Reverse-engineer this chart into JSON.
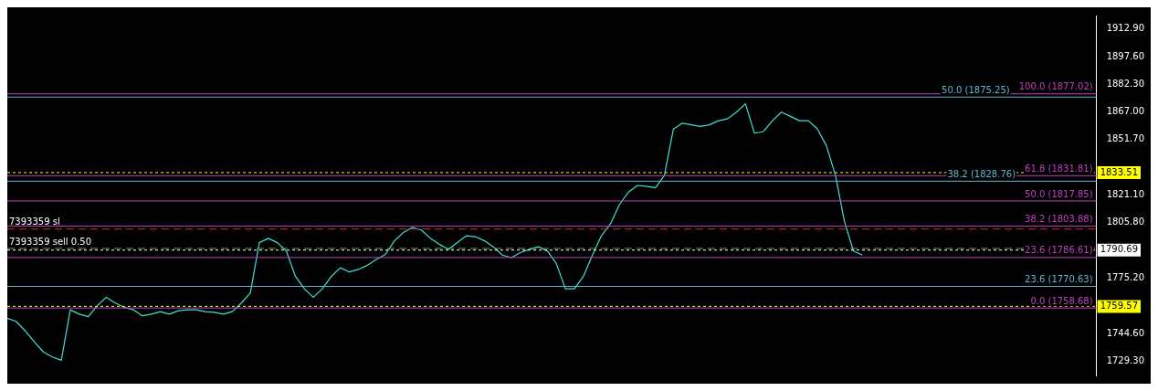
{
  "chart_data": {
    "type": "line",
    "categories": [
      null,
      null,
      null,
      null,
      null,
      null,
      null,
      null,
      null,
      null,
      null,
      null,
      null,
      null,
      null,
      null,
      null,
      null,
      null,
      null,
      null,
      null,
      null,
      null,
      null,
      null,
      null,
      null,
      null,
      null,
      null,
      null,
      null,
      null,
      null,
      null,
      null,
      null,
      null,
      null,
      null,
      null,
      null,
      null,
      null,
      null,
      null,
      null,
      null,
      null,
      null,
      null,
      null,
      null,
      null,
      null,
      null,
      null,
      null,
      null,
      null,
      null,
      null,
      null,
      null,
      null,
      null,
      null,
      null,
      null,
      null,
      null,
      null,
      null,
      null,
      null,
      null,
      null,
      null,
      null,
      null,
      null,
      null,
      null,
      null,
      null,
      null,
      null,
      null,
      null,
      null,
      null,
      null,
      null,
      null,
      null,
      null,
      null,
      null,
      null,
      null,
      null,
      null,
      null,
      null,
      null,
      null,
      null,
      null,
      null,
      null,
      null,
      null,
      null,
      null,
      null,
      null,
      null,
      null,
      null,
      null,
      null
    ],
    "series": [
      {
        "color": "#40e0d0",
        "values": [
          1753.0,
          1751.2,
          1746.0,
          1740.0,
          1734.4,
          1731.6,
          1729.8,
          1757.7,
          1755.3,
          1753.9,
          1760.0,
          1764.6,
          1761.4,
          1759.0,
          1757.7,
          1754.4,
          1755.3,
          1756.7,
          1755.3,
          1757.2,
          1757.7,
          1757.7,
          1756.7,
          1756.3,
          1755.3,
          1756.7,
          1761.4,
          1767.0,
          1794.8,
          1797.2,
          1794.8,
          1790.2,
          1776.2,
          1769.3,
          1764.6,
          1769.3,
          1776.2,
          1780.9,
          1778.6,
          1780.0,
          1782.3,
          1785.5,
          1788.3,
          1795.8,
          1800.4,
          1803.2,
          1801.8,
          1797.2,
          1793.9,
          1791.1,
          1794.8,
          1798.6,
          1798.1,
          1795.8,
          1792.5,
          1787.9,
          1786.5,
          1789.3,
          1791.1,
          1792.5,
          1790.2,
          1783.2,
          1769.3,
          1769.3,
          1776.2,
          1787.9,
          1798.6,
          1805.1,
          1815.8,
          1822.7,
          1826.4,
          1826.0,
          1825.1,
          1832.0,
          1857.6,
          1860.8,
          1859.9,
          1859.0,
          1859.9,
          1862.2,
          1863.2,
          1866.9,
          1871.5,
          1855.3,
          1856.2,
          1862.2,
          1866.9,
          1864.6,
          1862.2,
          1862.2,
          1857.6,
          1848.3,
          1832.0,
          1806.5,
          1790.2,
          1787.9,
          null,
          null,
          null,
          null,
          null,
          null,
          null,
          null,
          null,
          null,
          null,
          null,
          null,
          null,
          null,
          null,
          null,
          null,
          null,
          null,
          null,
          null,
          null,
          null,
          null,
          null
        ]
      }
    ],
    "ylim": [
      1721.4,
      1920.3
    ],
    "yticks": [
      {
        "value": 1912.9,
        "label": "1912.90"
      },
      {
        "value": 1897.6,
        "label": "1897.60"
      },
      {
        "value": 1882.3,
        "label": "1882.30"
      },
      {
        "value": 1867.0,
        "label": "1867.00"
      },
      {
        "value": 1851.7,
        "label": "1851.70"
      },
      {
        "value": 1821.1,
        "label": "1821.10"
      },
      {
        "value": 1805.8,
        "label": "1805.80"
      },
      {
        "value": 1775.2,
        "label": "1775.20"
      },
      {
        "value": 1744.6,
        "label": "1744.60"
      },
      {
        "value": 1729.3,
        "label": "1729.30"
      }
    ],
    "tick_labels": "y",
    "grid": false,
    "legend": false,
    "marker": "none",
    "line_style": "solid",
    "ref_lines": [
      {
        "axis": "y",
        "value": 1877.02,
        "label": "100.0 (1877.02)",
        "color": "#c040c0",
        "line_style": "solid"
      },
      {
        "axis": "y",
        "value": 1875.25,
        "label": "50.0 (1875.25)",
        "color": "#5fb8d0",
        "line_style": "solid"
      },
      {
        "axis": "y",
        "value": 1831.81,
        "label": "61.8 (1831.81)",
        "color": "#c040c0",
        "line_style": "solid"
      },
      {
        "axis": "y",
        "value": 1828.76,
        "label": "38.2 (1828.76)",
        "color": "#5fb8d0",
        "line_style": "solid"
      },
      {
        "axis": "y",
        "value": 1817.85,
        "label": "50.0 (1817.85)",
        "color": "#c040c0",
        "line_style": "solid"
      },
      {
        "axis": "y",
        "value": 1803.88,
        "label": "38.2 (1803.88)",
        "color": "#c040c0",
        "line_style": "solid"
      },
      {
        "axis": "y",
        "value": 1786.61,
        "label": "23.6 (1786.61)",
        "color": "#c040c0",
        "line_style": "solid"
      },
      {
        "axis": "y",
        "value": 1770.63,
        "label": "23.6 (1770.63)",
        "color": "#5fb8d0",
        "line_style": "solid"
      },
      {
        "axis": "y",
        "value": 1758.68,
        "label": "0.0 (1758.68)",
        "color": "#c040c0",
        "line_style": "solid"
      },
      {
        "axis": "y",
        "value": 1802.3,
        "label": "7393359 sl",
        "color": "#d03030",
        "line_style": "dashed"
      },
      {
        "axis": "y",
        "value": 1791.6,
        "label": "7393359 sell 0.50",
        "color": "#60a060",
        "line_style": "dashed"
      },
      {
        "axis": "y",
        "value": 1833.51,
        "label": "1833.51",
        "color": "#ffff00",
        "line_style": "dotted"
      },
      {
        "axis": "y",
        "value": 1790.69,
        "label": "1790.69",
        "color": "#ffffff",
        "line_style": "dotted"
      },
      {
        "axis": "y",
        "value": 1759.57,
        "label": "1759.57",
        "color": "#ffff00",
        "line_style": "dotted"
      }
    ]
  }
}
